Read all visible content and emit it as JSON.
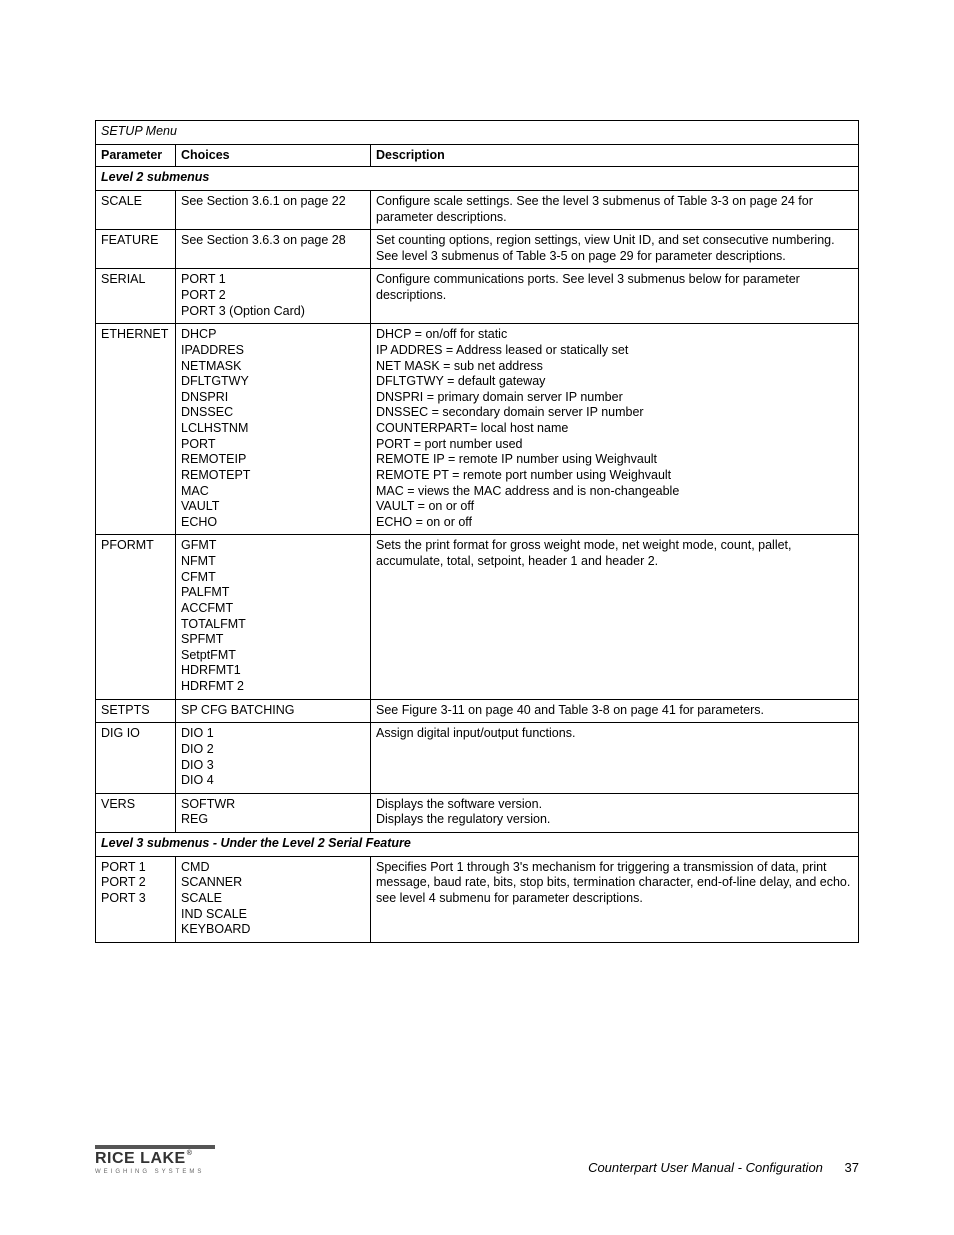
{
  "table": {
    "title": "SETUP Menu",
    "headers": {
      "param": "Parameter",
      "choices": "Choices",
      "desc": "Description"
    },
    "section_l2": "Level 2 submenus",
    "section_l3": "Level 3 submenus - Under the Level 2 Serial Feature",
    "rows": {
      "scale": {
        "param": "SCALE",
        "choices": "See Section 3.6.1 on page 22",
        "desc": "Configure scale settings. See the level 3 submenus of Table 3-3 on page 24 for parameter descriptions."
      },
      "feature": {
        "param": "FEATURE",
        "choices": "See Section 3.6.3 on page 28",
        "desc": "Set counting options, region settings, view Unit ID, and set consecutive numbering. See level 3 submenus of Table 3-5 on page 29 for parameter descriptions."
      },
      "serial": {
        "param": "SERIAL",
        "desc": "Configure communications ports. See level 3 submenus below for parameter descriptions.",
        "choices": {
          "l1": "PORT 1",
          "l2": "PORT 2",
          "l3": "PORT 3 (Option Card)"
        }
      },
      "ethernet": {
        "param": "ETHERNET",
        "choices": {
          "l1": "DHCP",
          "l2": "IPADDRES",
          "l3": "NETMASK",
          "l4": "DFLTGTWY",
          "l5": "DNSPRI",
          "l6": "DNSSEC",
          "l7": "LCLHSTNM",
          "l8": "PORT",
          "l9": "REMOTEIP",
          "l10": "REMOTEPT",
          "l11": "MAC",
          "l12": "VAULT",
          "l13": "ECHO"
        },
        "desc": {
          "l1": "DHCP = on/off for static",
          "l2": "IP ADDRES = Address leased or statically set",
          "l3": "NET MASK = sub net address",
          "l4": "DFLTGTWY = default gateway",
          "l5": "DNSPRI = primary domain server IP number",
          "l6": "DNSSEC = secondary domain server IP number",
          "l7": "COUNTERPART= local host name",
          "l8": "PORT = port number used",
          "l9": "REMOTE IP = remote IP number using Weighvault",
          "l10": "REMOTE PT = remote port number using Weighvault",
          "l11": "MAC = views the MAC address and is non-changeable",
          "l12": "VAULT = on or off",
          "l13": "ECHO = on or off"
        }
      },
      "pformt": {
        "param": "PFORMT",
        "choices": {
          "l1": "GFMT",
          "l2": "NFMT",
          "l3": "CFMT",
          "l4": "PALFMT",
          "l5": "ACCFMT",
          "l6": "TOTALFMT",
          "l7": "SPFMT",
          "l8": "SetptFMT",
          "l9": "HDRFMT1",
          "l10": "HDRFMT 2"
        },
        "desc": "Sets the print format for gross weight mode, net weight mode, count, pallet, accumulate, total, setpoint, header 1 and header 2."
      },
      "setpts": {
        "param": "SETPTS",
        "choices": "SP CFG BATCHING",
        "desc": "See Figure 3-11 on page 40 and Table 3-8 on page 41 for parameters."
      },
      "digio": {
        "param": "DIG IO",
        "choices": {
          "l1": "DIO 1",
          "l2": "DIO 2",
          "l3": "DIO 3",
          "l4": "DIO 4"
        },
        "desc": "Assign digital input/output functions."
      },
      "vers": {
        "param": "VERS",
        "choices": {
          "l1": "SOFTWR",
          "l2": "REG"
        },
        "desc": {
          "l1": "Displays the software version.",
          "l2": "Displays the regulatory version."
        }
      },
      "ports": {
        "param": {
          "l1": "PORT 1",
          "l2": "PORT 2",
          "l3": "PORT 3"
        },
        "choices": {
          "l1": "CMD",
          "l2": "SCANNER",
          "l3": "SCALE",
          "l4": "IND SCALE",
          "l5": "KEYBOARD"
        },
        "desc": "Specifies Port 1 through 3's mechanism for triggering a transmission of data, print message, baud rate, bits, stop bits, termination character, end-of-line delay, and echo. see level 4 submenu for parameter descriptions."
      }
    }
  },
  "footer": {
    "brand": "RICE LAKE",
    "brand_sub": "WEIGHING SYSTEMS",
    "doc_title": "Counterpart User Manual - Configuration",
    "page_number": "37"
  }
}
